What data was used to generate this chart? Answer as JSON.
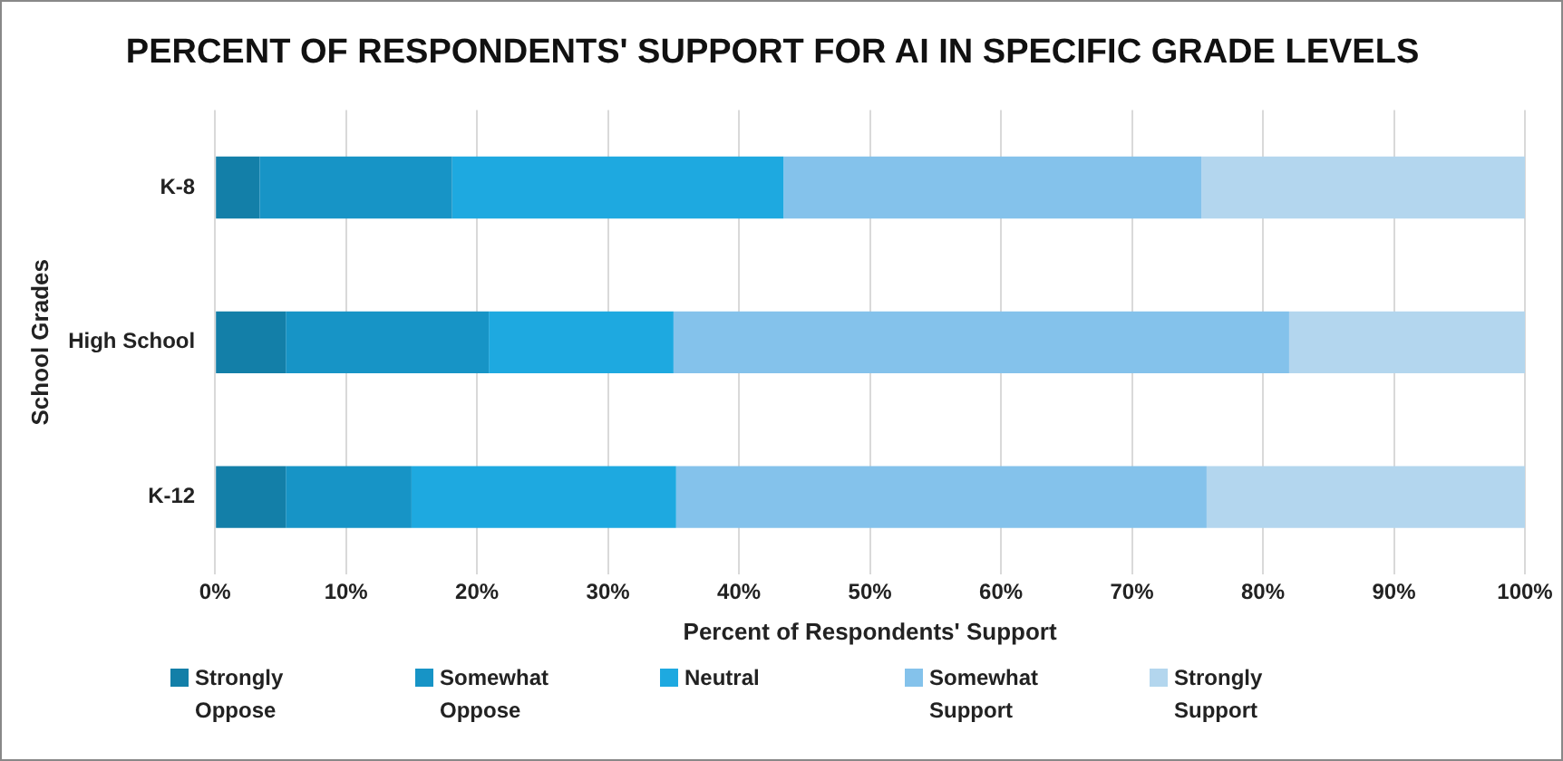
{
  "chart_data": {
    "type": "bar",
    "orientation": "horizontal",
    "stacked": true,
    "title": "PERCENT OF RESPONDENTS' SUPPORT FOR AI IN SPECIFIC GRADE LEVELS",
    "xlabel": "Percent of Respondents' Support",
    "ylabel": "School Grades",
    "categories": [
      "K-8",
      "High School",
      "K-12"
    ],
    "series": [
      {
        "name": "Strongly Oppose",
        "color": "#137fa8",
        "values": [
          3.4,
          5.4,
          5.4
        ]
      },
      {
        "name": "Somewhat Oppose",
        "color": "#1794c6",
        "values": [
          14.7,
          15.5,
          9.6
        ]
      },
      {
        "name": "Neutral",
        "color": "#1ea9e0",
        "values": [
          25.3,
          14.1,
          20.2
        ]
      },
      {
        "name": "Somewhat Support",
        "color": "#84c2eb",
        "values": [
          31.9,
          47.0,
          40.5
        ]
      },
      {
        "name": "Strongly Support",
        "color": "#b3d6ee",
        "values": [
          24.7,
          18.0,
          24.3
        ]
      }
    ],
    "xlim": [
      0,
      100
    ],
    "xticks": [
      {
        "value": 0,
        "label": "0%"
      },
      {
        "value": 10,
        "label": "10%"
      },
      {
        "value": 20,
        "label": "20%"
      },
      {
        "value": 30,
        "label": "30%"
      },
      {
        "value": 40,
        "label": "40%"
      },
      {
        "value": 50,
        "label": "50%"
      },
      {
        "value": 60,
        "label": "60%"
      },
      {
        "value": 70,
        "label": "70%"
      },
      {
        "value": 80,
        "label": "80%"
      },
      {
        "value": 90,
        "label": "90%"
      },
      {
        "value": 100,
        "label": "100%"
      }
    ],
    "grid": "x",
    "legend": "bottom"
  }
}
